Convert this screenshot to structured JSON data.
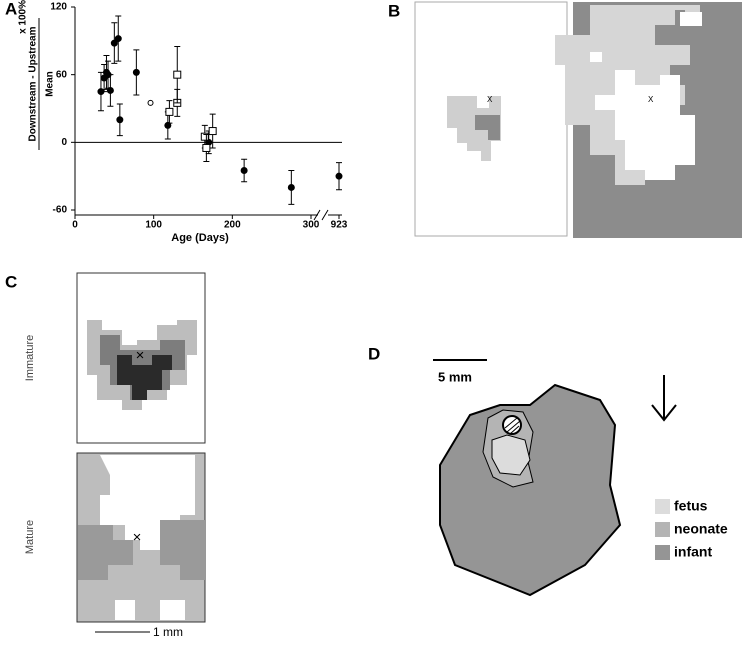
{
  "chart_data": {
    "type": "scatter",
    "x_label": "Age (Days)",
    "y_label_numerator": "Downstream - Upstream",
    "y_label_denominator": "Mean",
    "y_label_suffix": "x 100%",
    "xlim": [
      0,
      923
    ],
    "xticks": [
      0,
      100,
      200,
      300,
      923
    ],
    "ylim": [
      -60,
      120
    ],
    "yticks": [
      -60,
      0,
      60,
      120
    ],
    "series": [
      {
        "marker": "filled-circle",
        "color": "#000000",
        "x": [
          33,
          37,
          40,
          42,
          45,
          50,
          55,
          57,
          78,
          118,
          170,
          215,
          275,
          923
        ],
        "values": [
          45,
          57,
          62,
          60,
          46,
          88,
          92,
          20,
          62,
          15,
          0,
          -25,
          -40,
          -30
        ],
        "errors": [
          17,
          12,
          15,
          12,
          14,
          18,
          20,
          14,
          20,
          12,
          10,
          10,
          15,
          12
        ]
      },
      {
        "marker": "open-circle",
        "color": "#000000",
        "x": [
          96
        ],
        "values": [
          35
        ],
        "errors": [
          0
        ]
      },
      {
        "marker": "open-square",
        "color": "#000000",
        "x": [
          120,
          130,
          130,
          165,
          167,
          175
        ],
        "values": [
          27,
          35,
          60,
          5,
          -5,
          10
        ],
        "errors": [
          10,
          12,
          25,
          10,
          12,
          15
        ]
      }
    ]
  },
  "panels": {
    "a": "A",
    "b": "B",
    "c": "C",
    "d": "D"
  },
  "panel_b": {
    "site": "X"
  },
  "panel_c": {
    "top_label": "Immature",
    "bottom_label": "Mature",
    "site": "×",
    "scale": "1 mm"
  },
  "panel_d": {
    "scale": "5 mm",
    "legend": [
      "fetus",
      "neonate",
      "infant"
    ],
    "legend_colors": [
      "#dcdcdc",
      "#b4b4b4",
      "#959595"
    ]
  }
}
